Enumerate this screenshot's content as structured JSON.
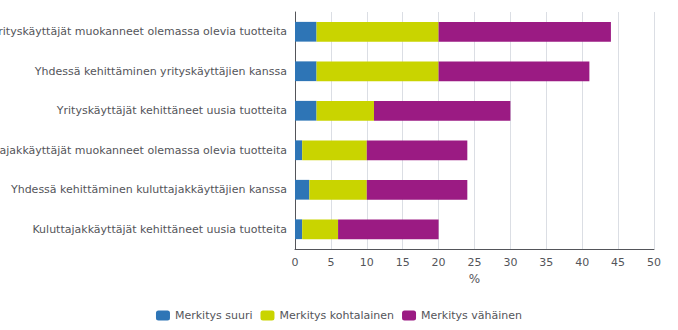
{
  "chart_data": {
    "type": "bar",
    "orientation": "horizontal",
    "stacked": true,
    "categories": [
      "Yrityskäyttäjät muokanneet olemassa olevia tuotteita",
      "Yhdessä kehittäminen yrityskäyttäjien kanssa",
      "Yrityskäyttäjät kehittäneet uusia tuotteita",
      "Kuluttajakkäyttäjät muokanneet olemassa olevia tuotteita",
      "Yhdessä kehittäminen kuluttajakkäyttäjien kanssa",
      "Kuluttajakkäyttäjät kehittäneet uusia tuotteita"
    ],
    "series": [
      {
        "name": "Merkitys suuri",
        "color": "#2E75B6",
        "values": [
          3,
          3,
          3,
          1,
          2,
          1
        ]
      },
      {
        "name": "Merkitys kohtalainen",
        "color": "#C9D400",
        "values": [
          17,
          17,
          8,
          9,
          8,
          5
        ]
      },
      {
        "name": "Merkitys vähäinen",
        "color": "#9B1B83",
        "values": [
          24,
          21,
          19,
          14,
          14,
          14
        ]
      }
    ],
    "xlabel": "%",
    "xlim": [
      0,
      50
    ],
    "xticks": [
      0,
      5,
      10,
      15,
      20,
      25,
      30,
      35,
      40,
      45,
      50
    ],
    "grid": true,
    "legend": "bottom"
  }
}
